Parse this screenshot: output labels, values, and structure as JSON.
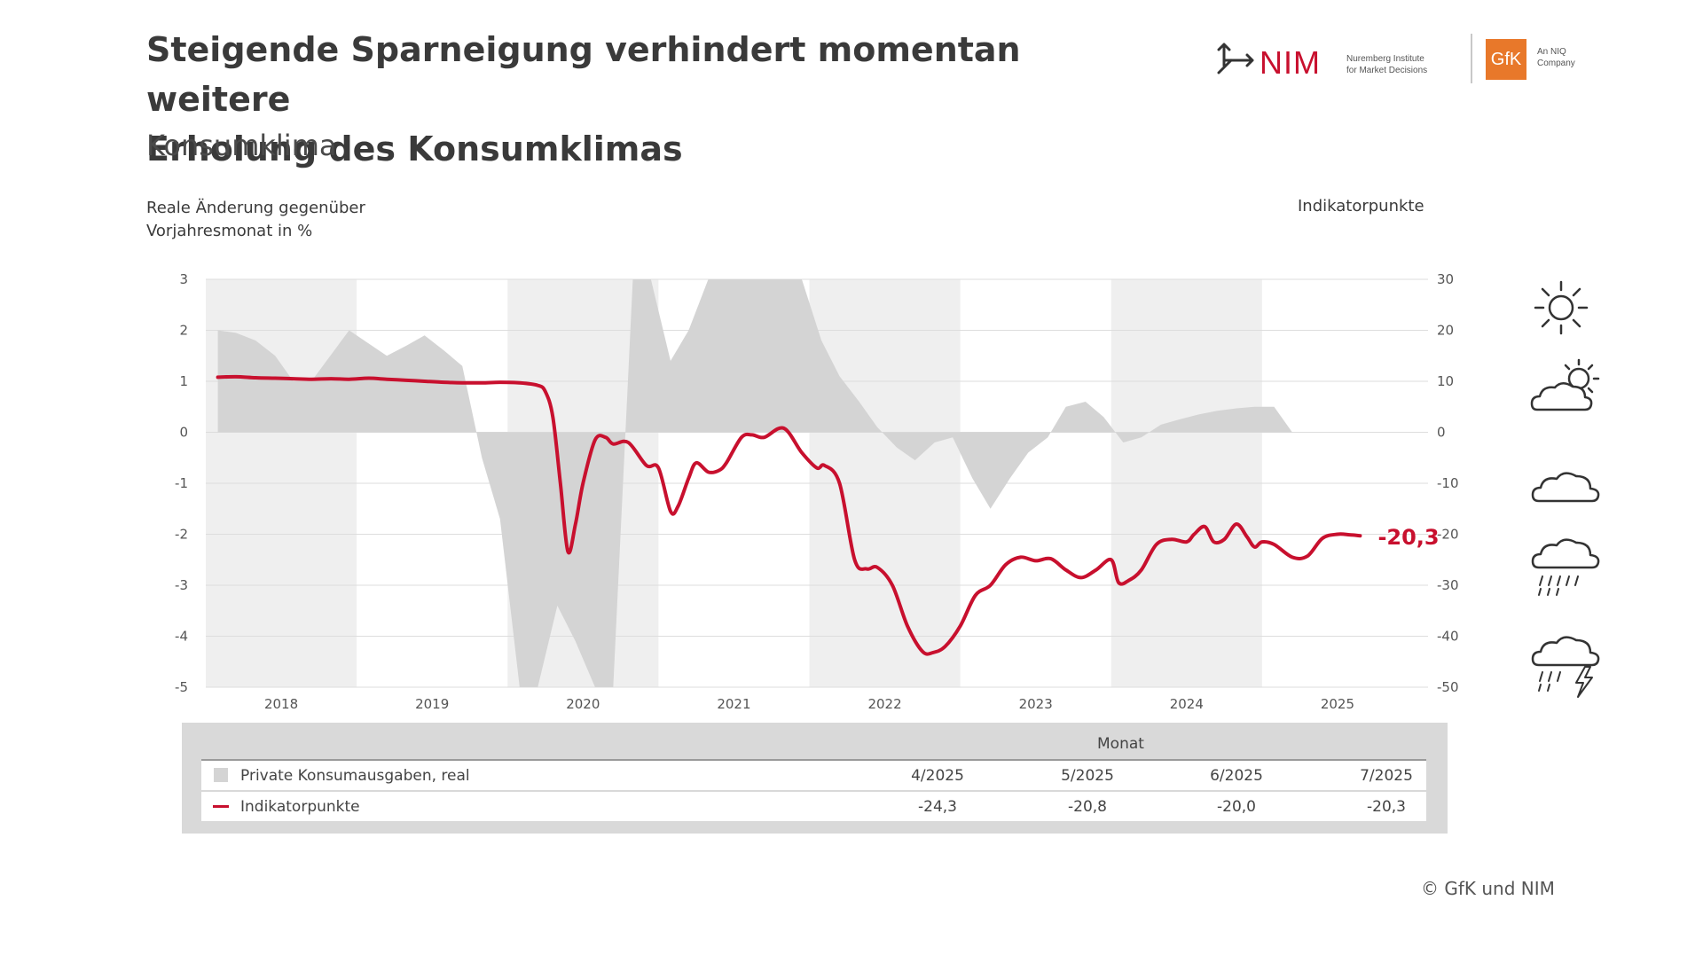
{
  "header": {
    "title_line1": "Steigende Sparneigung verhindert momentan weitere",
    "title_line2": "Erholung des Konsumklimas",
    "subtitle": "Konsumklima"
  },
  "logos": {
    "nim_text": "NIM",
    "nim_sub_line1": "Nuremberg Institute",
    "nim_sub_line2": "for Market Decisions",
    "gfk_text": "GfK",
    "gfk_sub_line1": "An NIQ",
    "gfk_sub_line2": "Company"
  },
  "weather_icons": [
    "sun-icon",
    "partly-cloudy-icon",
    "cloud-icon",
    "rain-icon",
    "thunderstorm-icon"
  ],
  "footer": {
    "copyright": "© GfK und NIM"
  },
  "legend_table": {
    "header": "Monat",
    "months": [
      "4/2025",
      "5/2025",
      "6/2025",
      "7/2025"
    ],
    "rows": [
      {
        "label": "Private Konsumausgaben, real",
        "values": [
          "",
          "",
          "",
          ""
        ]
      },
      {
        "label": "Indikatorpunkte",
        "values": [
          "-24,3",
          "-20,8",
          "-20,0",
          "-20,3"
        ]
      }
    ]
  },
  "chart_data": {
    "type": "area+line",
    "xlabel_left": "Reale Änderung gegenüber\nVorjahresmonat in %",
    "ylabel_right": "Indikatorpunkte",
    "x_ticks": [
      "2018",
      "2019",
      "2020",
      "2021",
      "2022",
      "2023",
      "2024",
      "2025"
    ],
    "x_range": [
      2017.5,
      2025.6
    ],
    "y_left": {
      "range": [
        -5,
        3
      ],
      "ticks": [
        3,
        2,
        1,
        0,
        -1,
        -2,
        -3,
        -4,
        -5
      ],
      "labels": [
        "3",
        "2",
        "1",
        "0",
        "-1",
        "-2",
        "-3",
        "-4",
        "-5"
      ]
    },
    "y_right": {
      "range": [
        -50,
        30
      ],
      "ticks": [
        30,
        20,
        10,
        0,
        -10,
        -20,
        -30,
        -40,
        -50
      ],
      "labels": [
        "30",
        "20",
        "10",
        "0",
        "-10",
        "-20",
        "-30",
        "-40",
        "-50"
      ]
    },
    "grid": true,
    "year_shading": [
      2018,
      2020,
      2022,
      2024
    ],
    "last_value_label": "-20,3",
    "colors": {
      "line": "#c8102e",
      "area": "#d4d4d4",
      "shading": "#efefef",
      "grid": "#dddddd"
    },
    "series": [
      {
        "name": "Private Konsumausgaben, real",
        "axis": "left",
        "style": "area",
        "x": [
          2017.58,
          2017.7,
          2017.83,
          2017.96,
          2018.08,
          2018.2,
          2018.45,
          2018.7,
          2018.83,
          2018.95,
          2019.08,
          2019.2,
          2019.33,
          2019.45,
          2019.58,
          2019.7,
          2019.83,
          2019.95,
          2020.08,
          2020.2,
          2020.33,
          2020.45,
          2020.58,
          2020.7,
          2020.83,
          2020.95,
          2021.08,
          2021.2,
          2021.33,
          2021.45,
          2021.58,
          2021.7,
          2021.83,
          2021.95,
          2022.08,
          2022.2,
          2022.33,
          2022.45,
          2022.58,
          2022.7,
          2022.83,
          2022.95,
          2023.08,
          2023.2,
          2023.33,
          2023.45,
          2023.58,
          2023.7,
          2023.83,
          2023.95,
          2024.08,
          2024.2,
          2024.33,
          2024.45,
          2024.58,
          2024.7,
          2024.83,
          2024.95,
          2025.08
        ],
        "values": [
          2.0,
          1.95,
          1.8,
          1.5,
          1.0,
          1.0,
          2.0,
          1.5,
          1.7,
          1.9,
          1.6,
          1.3,
          -0.5,
          -1.7,
          -5.0,
          -5.0,
          -3.4,
          -4.1,
          -5.0,
          -5.0,
          3.0,
          3.0,
          1.4,
          2.0,
          3.0,
          3.0,
          3.0,
          3.0,
          3.0,
          3.0,
          1.8,
          1.1,
          0.6,
          0.1,
          -0.3,
          -0.55,
          -0.2,
          -0.1,
          -0.9,
          -1.5,
          -0.9,
          -0.4,
          -0.1,
          0.5,
          0.6,
          0.3,
          -0.2,
          -0.1,
          0.15,
          0.25,
          0.35,
          0.42,
          0.47,
          0.5,
          0.5,
          0.0,
          0.0,
          0.0,
          0.0
        ]
      },
      {
        "name": "Indikatorpunkte",
        "axis": "right",
        "style": "line",
        "x": [
          2017.58,
          2017.7,
          2017.83,
          2017.96,
          2018.08,
          2018.2,
          2018.33,
          2018.45,
          2018.58,
          2018.7,
          2018.83,
          2018.95,
          2019.08,
          2019.2,
          2019.33,
          2019.45,
          2019.58,
          2019.7,
          2019.75,
          2019.8,
          2019.85,
          2019.9,
          2019.95,
          2020.0,
          2020.08,
          2020.15,
          2020.2,
          2020.3,
          2020.42,
          2020.5,
          2020.58,
          2020.63,
          2020.7,
          2020.75,
          2020.83,
          2020.9,
          2020.95,
          2021.05,
          2021.12,
          2021.2,
          2021.33,
          2021.45,
          2021.55,
          2021.6,
          2021.7,
          2021.8,
          2021.88,
          2021.95,
          2022.05,
          2022.15,
          2022.25,
          2022.32,
          2022.4,
          2022.5,
          2022.6,
          2022.7,
          2022.8,
          2022.9,
          2023.0,
          2023.1,
          2023.2,
          2023.3,
          2023.4,
          2023.5,
          2023.55,
          2023.62,
          2023.7,
          2023.8,
          2023.9,
          2024.0,
          2024.05,
          2024.12,
          2024.18,
          2024.25,
          2024.33,
          2024.4,
          2024.45,
          2024.5,
          2024.58,
          2024.7,
          2024.8,
          2024.9,
          2025.0,
          2025.08,
          2025.15
        ],
        "values": [
          10.8,
          10.9,
          10.7,
          10.6,
          10.5,
          10.4,
          10.5,
          10.4,
          10.6,
          10.4,
          10.2,
          10.0,
          9.8,
          9.7,
          9.7,
          9.8,
          9.7,
          9.2,
          8.0,
          3.0,
          -10.0,
          -23.4,
          -18.0,
          -10.0,
          -1.5,
          -1.0,
          -2.3,
          -2.0,
          -6.5,
          -7.0,
          -15.5,
          -14.5,
          -9.0,
          -6.0,
          -7.8,
          -7.5,
          -6.0,
          -1.0,
          -0.5,
          -1.0,
          0.8,
          -4.0,
          -7.0,
          -6.5,
          -10.0,
          -25.0,
          -26.8,
          -26.5,
          -30.0,
          -38.0,
          -43.0,
          -43.2,
          -42.0,
          -38.0,
          -32.0,
          -30.0,
          -26.0,
          -24.5,
          -25.2,
          -24.8,
          -27.0,
          -28.5,
          -27.0,
          -25.0,
          -29.5,
          -29.0,
          -27.0,
          -22.0,
          -21.0,
          -21.5,
          -20.0,
          -18.5,
          -21.5,
          -21.0,
          -18.0,
          -20.5,
          -22.5,
          -21.5,
          -22.0,
          -24.5,
          -24.3,
          -20.8,
          -20.0,
          -20.1,
          -20.3
        ]
      }
    ]
  }
}
